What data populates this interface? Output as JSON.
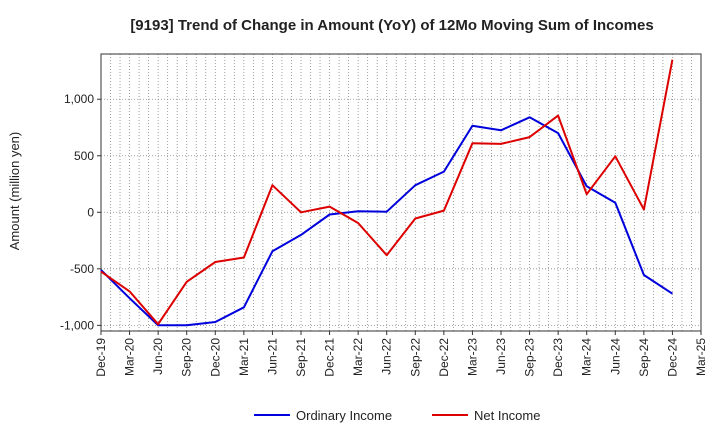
{
  "chart_data": {
    "type": "line",
    "title": "[9193]  Trend of Change in Amount (YoY) of 12Mo Moving Sum of Incomes",
    "xlabel": "",
    "ylabel": "Amount (million yen)",
    "ylim": [
      -1050,
      1400
    ],
    "yticks": [
      -1000,
      -500,
      0,
      500,
      1000
    ],
    "ytick_labels": [
      "-1,000",
      "-500",
      "0",
      "500",
      "1,000"
    ],
    "x_months": [
      "Dec-19",
      "Jan-20",
      "Feb-20",
      "Mar-20",
      "Apr-20",
      "May-20",
      "Jun-20",
      "Jul-20",
      "Aug-20",
      "Sep-20",
      "Oct-20",
      "Nov-20",
      "Dec-20",
      "Jan-21",
      "Feb-21",
      "Mar-21",
      "Apr-21",
      "May-21",
      "Jun-21",
      "Jul-21",
      "Aug-21",
      "Sep-21",
      "Oct-21",
      "Nov-21",
      "Dec-21",
      "Jan-22",
      "Feb-22",
      "Mar-22",
      "Apr-22",
      "May-22",
      "Jun-22",
      "Jul-22",
      "Aug-22",
      "Sep-22",
      "Oct-22",
      "Nov-22",
      "Dec-22",
      "Jan-23",
      "Feb-23",
      "Mar-23",
      "Apr-23",
      "May-23",
      "Jun-23",
      "Jul-23",
      "Aug-23",
      "Sep-23",
      "Oct-23",
      "Nov-23",
      "Dec-23",
      "Jan-24",
      "Feb-24",
      "Mar-24",
      "Apr-24",
      "May-24",
      "Jun-24",
      "Jul-24",
      "Aug-24",
      "Sep-24",
      "Oct-24",
      "Nov-24",
      "Dec-24",
      "Jan-25",
      "Feb-25",
      "Mar-25"
    ],
    "x_tick_labels": [
      "Dec-19",
      "Mar-20",
      "Jun-20",
      "Sep-20",
      "Dec-20",
      "Mar-21",
      "Jun-21",
      "Sep-21",
      "Dec-21",
      "Mar-22",
      "Jun-22",
      "Sep-22",
      "Dec-22",
      "Mar-23",
      "Jun-23",
      "Sep-23",
      "Dec-23",
      "Mar-24",
      "Jun-24",
      "Sep-24",
      "Dec-24",
      "Mar-25"
    ],
    "categories": [
      "Dec-19",
      "Mar-20",
      "Jun-20",
      "Sep-20",
      "Dec-20",
      "Mar-21",
      "Jun-21",
      "Sep-21",
      "Dec-21",
      "Mar-22",
      "Jun-22",
      "Sep-22",
      "Dec-22",
      "Mar-23",
      "Jun-23",
      "Sep-23",
      "Dec-23",
      "Mar-24",
      "Jun-24",
      "Sep-24",
      "Dec-24"
    ],
    "series": [
      {
        "name": "Ordinary Income",
        "color": "#0000dd",
        "values": [
          -510,
          -760,
          -1000,
          -1000,
          -970,
          -840,
          -345,
          -200,
          -20,
          10,
          5,
          240,
          360,
          765,
          725,
          840,
          700,
          230,
          85,
          -555,
          -720
        ]
      },
      {
        "name": "Net Income",
        "color": "#dd0000",
        "values": [
          -525,
          -700,
          -990,
          -615,
          -440,
          -400,
          240,
          0,
          50,
          -95,
          -380,
          -55,
          15,
          610,
          605,
          665,
          855,
          160,
          495,
          25,
          1350
        ]
      }
    ],
    "grid": true,
    "legend": "bottom-center"
  }
}
